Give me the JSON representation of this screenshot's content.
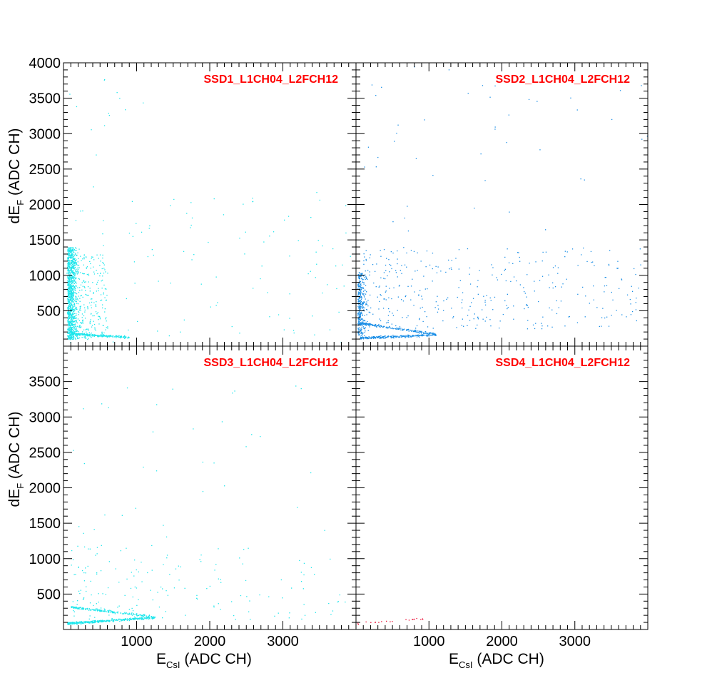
{
  "colors": {
    "cyan": "#1ee6ec",
    "blue": "#1a8ee6",
    "red": "#e8002a",
    "title": "#ff0000",
    "frame": "#000000"
  },
  "chart_data": [
    {
      "type": "scatter",
      "title": "SSD1_L1CH04_L2FCH12",
      "xlim": [
        0,
        4000
      ],
      "ylim": [
        0,
        4000
      ],
      "ylabel": "dE",
      "ylabel_sub": "F",
      "ylabel_unit": " (ADC CH)",
      "xlabel": "",
      "yticks": [
        "500",
        "1000",
        "1500",
        "2000",
        "2500",
        "3000",
        "3500",
        "4000"
      ],
      "xticks": [],
      "grid": false,
      "color": "cyan",
      "features": {
        "vertical_band": {
          "x": [
            50,
            150
          ],
          "y": [
            100,
            1400
          ],
          "n": 1000
        },
        "scatter_cloud": {
          "x": [
            100,
            600
          ],
          "y": [
            100,
            1300
          ],
          "n": 350
        },
        "tail": {
          "x": [
            100,
            900
          ],
          "y_start": 180,
          "y_end": 130,
          "n": 260
        },
        "background": {
          "x": [
            0,
            4000
          ],
          "y": [
            50,
            2200
          ],
          "n": 110
        },
        "upper_sparse": {
          "x": [
            20,
            1200
          ],
          "y": [
            2000,
            3900
          ],
          "n": 15
        }
      }
    },
    {
      "type": "scatter",
      "title": "SSD2_L1CH04_L2FCH12",
      "xlim": [
        0,
        4000
      ],
      "ylim": [
        0,
        4000
      ],
      "xlabel": "",
      "ylabel": "",
      "yticks": [],
      "xticks": [],
      "grid": false,
      "color": "blue",
      "features": {
        "vertical_band": {
          "x": [
            20,
            100
          ],
          "y": [
            150,
            1050
          ],
          "n": 320
        },
        "band_upper": {
          "x": [
            50,
            1100
          ],
          "y_start": 330,
          "y_end": 170,
          "n": 220
        },
        "band_lower": {
          "x": [
            50,
            1100
          ],
          "y_start": 120,
          "y_end": 165,
          "n": 260
        },
        "scatter_cloud": {
          "x": [
            100,
            3900
          ],
          "y": [
            250,
            1400
          ],
          "n": 380
        },
        "upper_sparse": {
          "x": [
            100,
            4000
          ],
          "y": [
            1500,
            3950
          ],
          "n": 45
        }
      }
    },
    {
      "type": "scatter",
      "title": "SSD3_L1CH04_L2FCH12",
      "xlim": [
        0,
        4000
      ],
      "ylim": [
        0,
        4000
      ],
      "ylabel": "dE",
      "ylabel_sub": "F",
      "ylabel_unit": " (ADC CH)",
      "xlabel": "E",
      "xlabel_sub": "CsI",
      "xlabel_unit": " (ADC CH)",
      "yticks": [
        "500",
        "1000",
        "1500",
        "2000",
        "2500",
        "3000",
        "3500"
      ],
      "xticks": [
        "1000",
        "2000",
        "3000"
      ],
      "grid": false,
      "color": "cyan",
      "features": {
        "band_lower": {
          "x": [
            50,
            1250
          ],
          "y_start": 90,
          "y_end": 175,
          "n": 420
        },
        "band_upper": {
          "x": [
            100,
            1200
          ],
          "y_start": 320,
          "y_end": 190,
          "n": 200
        },
        "scatter_cloud": {
          "x": [
            100,
            3900
          ],
          "y": [
            150,
            1200
          ],
          "n": 170
        },
        "upper_sparse": {
          "x": [
            100,
            3900
          ],
          "y": [
            1300,
            3600
          ],
          "n": 35
        }
      }
    },
    {
      "type": "scatter",
      "title": "SSD4_L1CH04_L2FCH12",
      "xlim": [
        0,
        4000
      ],
      "ylim": [
        0,
        4000
      ],
      "xlabel": "E",
      "xlabel_sub": "CsI",
      "xlabel_unit": " (ADC CH)",
      "ylabel": "",
      "yticks": [],
      "xticks": [
        "1000",
        "2000",
        "3000"
      ],
      "grid": false,
      "color": "red",
      "features": {
        "tail": {
          "x": [
            20,
            950
          ],
          "y_start": 95,
          "y_end": 160,
          "n": 22
        }
      }
    }
  ]
}
